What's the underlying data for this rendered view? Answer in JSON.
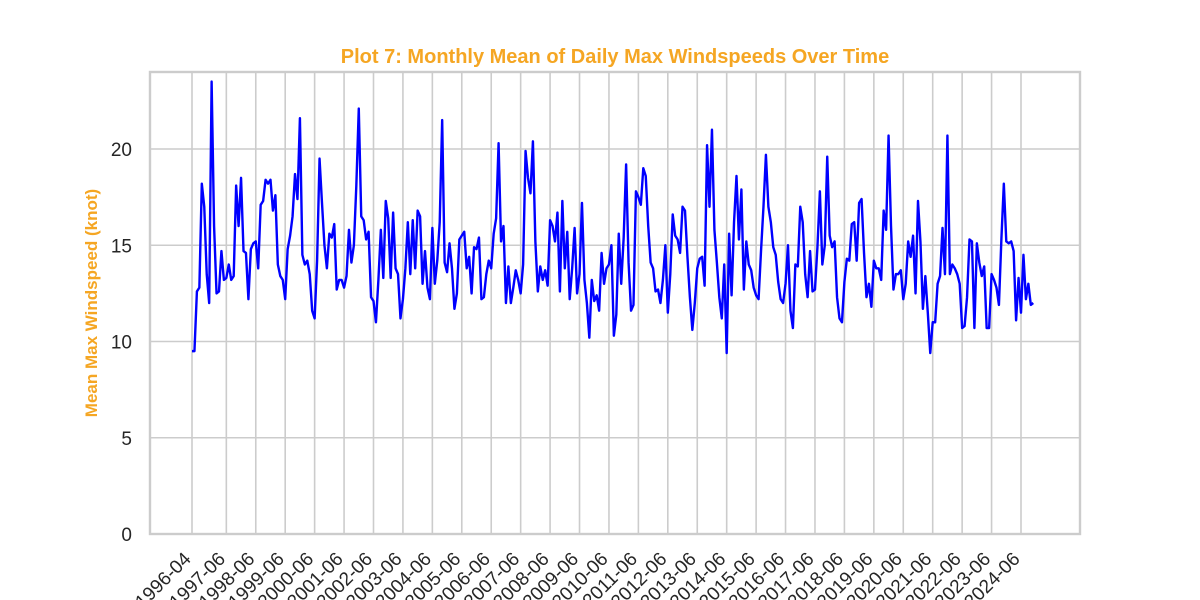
{
  "chart_data": {
    "type": "line",
    "title": "Plot 7: Monthly Mean of Daily Max Windspeeds Over Time",
    "xlabel": "",
    "ylabel": "Mean Max Windspeed (knot)",
    "ylim": [
      0,
      24
    ],
    "yticks": [
      0,
      5,
      10,
      15,
      20
    ],
    "grid": true,
    "colors": {
      "line": "#0000ff",
      "title": "#f5a623",
      "ylabel": "#f5a623",
      "grid": "#cccccc",
      "frame": "#cccccc"
    },
    "xtick_labels": [
      "1996-04",
      "1997-06",
      "1998-06",
      "1999-06",
      "2000-06",
      "2001-06",
      "2002-06",
      "2003-06",
      "2004-06",
      "2005-06",
      "2006-06",
      "2007-06",
      "2008-06",
      "2009-06",
      "2010-06",
      "2011-06",
      "2012-06",
      "2013-06",
      "2014-06",
      "2015-06",
      "2016-06",
      "2017-06",
      "2018-06",
      "2019-06",
      "2020-06",
      "2021-06",
      "2022-06",
      "2023-06",
      "2024-06"
    ],
    "x_start": "1996-04",
    "series": [
      {
        "values": [
          9.5,
          9.5,
          12.6,
          12.8,
          18.2,
          17.0,
          13.5,
          12.0,
          23.5,
          16.0,
          12.5,
          12.6,
          14.7,
          13.2,
          13.3,
          14.0,
          13.2,
          13.4,
          18.1,
          16.0,
          18.5,
          14.7,
          14.6,
          12.2,
          14.8,
          15.1,
          15.2,
          13.8,
          17.1,
          17.3,
          18.4,
          18.2,
          18.4,
          16.8,
          17.6,
          14.0,
          13.4,
          13.2,
          12.2,
          14.8,
          15.5,
          16.5,
          18.7,
          17.4,
          21.6,
          14.5,
          14.0,
          14.2,
          13.5,
          11.6,
          11.2,
          14.2,
          19.5,
          17.2,
          15.0,
          13.8,
          15.6,
          15.4,
          16.1,
          12.7,
          13.2,
          13.2,
          12.8,
          13.4,
          15.8,
          14.1,
          15.0,
          18.1,
          22.1,
          16.5,
          16.3,
          15.3,
          15.7,
          12.3,
          12.1,
          11.0,
          13.2,
          15.8,
          13.3,
          17.3,
          16.4,
          13.3,
          16.7,
          13.8,
          13.5,
          11.2,
          12.2,
          13.8,
          16.2,
          13.5,
          16.3,
          13.8,
          16.8,
          16.5,
          13.0,
          14.7,
          12.8,
          12.2,
          15.9,
          13.0,
          14.2,
          16.2,
          21.5,
          14.1,
          13.6,
          15.1,
          13.8,
          11.7,
          12.5,
          15.3,
          15.5,
          15.7,
          13.8,
          14.4,
          12.5,
          14.9,
          14.8,
          15.4,
          12.2,
          12.3,
          13.5,
          14.2,
          13.8,
          15.6,
          16.4,
          20.3,
          15.2,
          16.0,
          12.0,
          13.9,
          12.0,
          12.8,
          13.7,
          13.2,
          12.5,
          14.0,
          19.9,
          18.5,
          17.7,
          20.4,
          15.2,
          12.6,
          13.9,
          13.2,
          13.7,
          12.9,
          16.3,
          16.0,
          15.2,
          16.7,
          12.6,
          17.3,
          13.8,
          15.7,
          12.2,
          13.8,
          15.9,
          12.5,
          13.5,
          17.2,
          13.2,
          12.0,
          10.2,
          13.2,
          12.1,
          12.4,
          11.6,
          14.6,
          13.0,
          13.8,
          14.0,
          15.0,
          10.3,
          11.4,
          15.6,
          13.0,
          15.4,
          19.2,
          14.1,
          11.6,
          11.9,
          17.8,
          17.5,
          17.1,
          19.0,
          18.6,
          16.0,
          14.1,
          13.8,
          12.6,
          12.7,
          12.0,
          13.2,
          15.0,
          11.5,
          13.5,
          16.6,
          15.5,
          15.3,
          14.6,
          17.0,
          16.8,
          14.4,
          12.3,
          10.6,
          12.0,
          13.8,
          14.3,
          14.4,
          12.9,
          20.2,
          17.0,
          21.0,
          15.8,
          14.1,
          12.3,
          11.2,
          14.0,
          9.4,
          15.6,
          12.4,
          16.2,
          18.6,
          15.3,
          17.9,
          12.7,
          15.2,
          14.0,
          13.7,
          12.8,
          12.4,
          12.2,
          14.7,
          17.0,
          19.7,
          17.0,
          16.2,
          14.9,
          14.5,
          13.1,
          12.2,
          12.0,
          13.0,
          15.0,
          11.6,
          10.7,
          14.0,
          13.9,
          17.0,
          16.2,
          13.5,
          12.3,
          14.7,
          12.6,
          12.7,
          14.9,
          17.8,
          14.0,
          15.0,
          19.6,
          15.5,
          14.9,
          15.2,
          12.3,
          11.2,
          11.0,
          13.1,
          14.3,
          14.2,
          16.1,
          16.2,
          14.2,
          17.2,
          17.4,
          14.6,
          12.3,
          13.0,
          11.8,
          14.2,
          13.8,
          13.8,
          13.2,
          16.8,
          15.8,
          20.7,
          16.0,
          12.7,
          13.5,
          13.5,
          13.7,
          12.2,
          13.0,
          15.2,
          14.4,
          15.5,
          12.5,
          17.3,
          15.2,
          11.7,
          13.4,
          11.5,
          9.4,
          11.0,
          11.0,
          13.0,
          13.4,
          15.9,
          13.5,
          20.7,
          13.5,
          14.0,
          13.8,
          13.5,
          13.0,
          10.7,
          10.8,
          12.3,
          15.3,
          15.2,
          10.7,
          15.1,
          14.1,
          13.4,
          13.9,
          10.7,
          10.7,
          13.5,
          13.2,
          12.8,
          11.9,
          15.3,
          18.2,
          15.2,
          15.1,
          15.2,
          14.7,
          11.1,
          13.3,
          11.5,
          14.5,
          12.2,
          13.0,
          11.9,
          12.0
        ]
      }
    ]
  }
}
